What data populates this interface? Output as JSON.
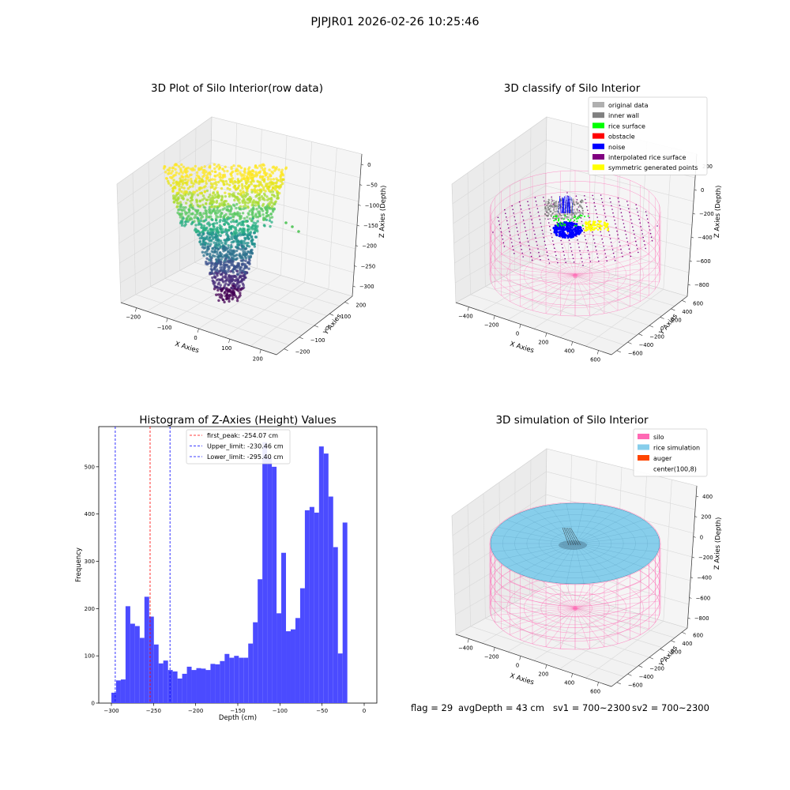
{
  "figure": {
    "suptitle": "PJPJR01 2026-02-26 10:25:46",
    "footer": {
      "flag": "flag = 29",
      "avg_depth": "avgDepth = 43 cm",
      "sv1": "sv1 = 700~2300",
      "sv2": "sv2 = 700~2300"
    }
  },
  "colors": {
    "original": "#b0b0b0",
    "inner_wall": "#808080",
    "rice_surface": "#00ff00",
    "obstacle": "#ff0000",
    "noise": "#0000ff",
    "interpolated": "#800080",
    "symmetric": "#ffff00",
    "silo": "#ff69b4",
    "rice_sim": "#87ceeb",
    "auger": "#ff4500",
    "hist_bar": "#4b4bff",
    "peak_line": "#ff0000",
    "limit_line": "#0000ff"
  },
  "chart_data": [
    {
      "type": "scatter",
      "subtype": "3d",
      "title": "3D Plot of Silo Interior(row data)",
      "xlabel": "X Axies",
      "ylabel": "Y Axies",
      "zlabel": "Z Axies (Depth)",
      "x_ticks": [
        "−200",
        "−100",
        "0",
        "100",
        "200"
      ],
      "y_ticks": [
        "−200",
        "−100",
        "0",
        "100",
        "200"
      ],
      "z_ticks": [
        "0",
        "−50",
        "−100",
        "−150",
        "−200",
        "−250",
        "−300"
      ],
      "xlim": [
        -250,
        250
      ],
      "ylim": [
        -250,
        250
      ],
      "zlim": [
        -320,
        20
      ],
      "colormap": "viridis"
    },
    {
      "type": "scatter",
      "subtype": "3d",
      "title": "3D classify of Silo Interior",
      "xlabel": "X Axies",
      "ylabel": "Y Axies",
      "zlabel": "Z Axies (Depth)",
      "x_ticks": [
        "−400",
        "−200",
        "0",
        "200",
        "400",
        "600"
      ],
      "y_ticks": [
        "−600",
        "−400",
        "−200",
        "0",
        "200",
        "400",
        "600"
      ],
      "z_ticks": [
        "200",
        "0",
        "−200",
        "−400",
        "−600",
        "−800"
      ],
      "xlim": [
        -500,
        700
      ],
      "ylim": [
        -700,
        700
      ],
      "zlim": [
        -900,
        300
      ],
      "legend_placement": "upper right",
      "legend": [
        {
          "label": "original data",
          "color": "#b0b0b0"
        },
        {
          "label": "inner wall",
          "color": "#808080"
        },
        {
          "label": "rice surface",
          "color": "#00ff00"
        },
        {
          "label": "obstacle",
          "color": "#ff0000"
        },
        {
          "label": "noise",
          "color": "#0000ff"
        },
        {
          "label": "interpolated rice surface",
          "color": "#800080"
        },
        {
          "label": "symmetric generated points",
          "color": "#ffff00"
        }
      ]
    },
    {
      "type": "bar",
      "subtype": "histogram",
      "title": "Histogram of Z-Axies (Height) Values",
      "xlabel": "Depth (cm)",
      "ylabel": "Frequency",
      "xlim": [
        -315,
        15
      ],
      "ylim": [
        0,
        585
      ],
      "x_ticks": [
        -300,
        -250,
        -200,
        -150,
        -100,
        -50,
        0
      ],
      "x_tick_labels": [
        "−300",
        "−250",
        "−200",
        "−150",
        "−100",
        "−50",
        "0"
      ],
      "y_ticks": [
        0,
        100,
        200,
        300,
        400,
        500
      ],
      "y_tick_labels": [
        "0",
        "100",
        "200",
        "300",
        "400",
        "500"
      ],
      "bin_start": -300,
      "bin_width": 5.6,
      "values": [
        22,
        48,
        50,
        205,
        168,
        163,
        138,
        225,
        183,
        124,
        84,
        90,
        70,
        67,
        52,
        62,
        77,
        70,
        74,
        73,
        70,
        83,
        82,
        89,
        104,
        96,
        100,
        96,
        96,
        126,
        171,
        262,
        552,
        520,
        500,
        190,
        318,
        152,
        156,
        180,
        243,
        408,
        415,
        403,
        543,
        528,
        437,
        330,
        105,
        382
      ],
      "vlines": [
        {
          "x": -254.07,
          "label": "first_peak: -254.07 cm",
          "color": "#ff0000"
        },
        {
          "x": -230.46,
          "label": "Upper_limit: -230.46 cm",
          "color": "#0000ff"
        },
        {
          "x": -295.4,
          "label": "Lower_limit: -295.40 cm",
          "color": "#0000ff"
        }
      ],
      "legend_placement": "upper center"
    },
    {
      "type": "scatter",
      "subtype": "3d-surface",
      "title": "3D simulation of Silo Interior",
      "xlabel": "X Axies",
      "ylabel": "Y Axies",
      "zlabel": "Z Axies (Depth)",
      "x_ticks": [
        "−400",
        "−200",
        "0",
        "200",
        "400",
        "600"
      ],
      "y_ticks": [
        "−600",
        "−400",
        "−200",
        "0",
        "200",
        "400",
        "600"
      ],
      "z_ticks": [
        "400",
        "200",
        "0",
        "−200",
        "−400",
        "−600",
        "−800"
      ],
      "xlim": [
        -500,
        700
      ],
      "ylim": [
        -700,
        700
      ],
      "zlim": [
        -900,
        450
      ],
      "legend_placement": "upper right",
      "legend": [
        {
          "label": "silo",
          "color": "#ff69b4"
        },
        {
          "label": "rice simulation",
          "color": "#87ceeb"
        },
        {
          "label": "auger",
          "color": "#ff4500"
        },
        {
          "label": "center(100,8)",
          "color": ""
        }
      ]
    }
  ]
}
